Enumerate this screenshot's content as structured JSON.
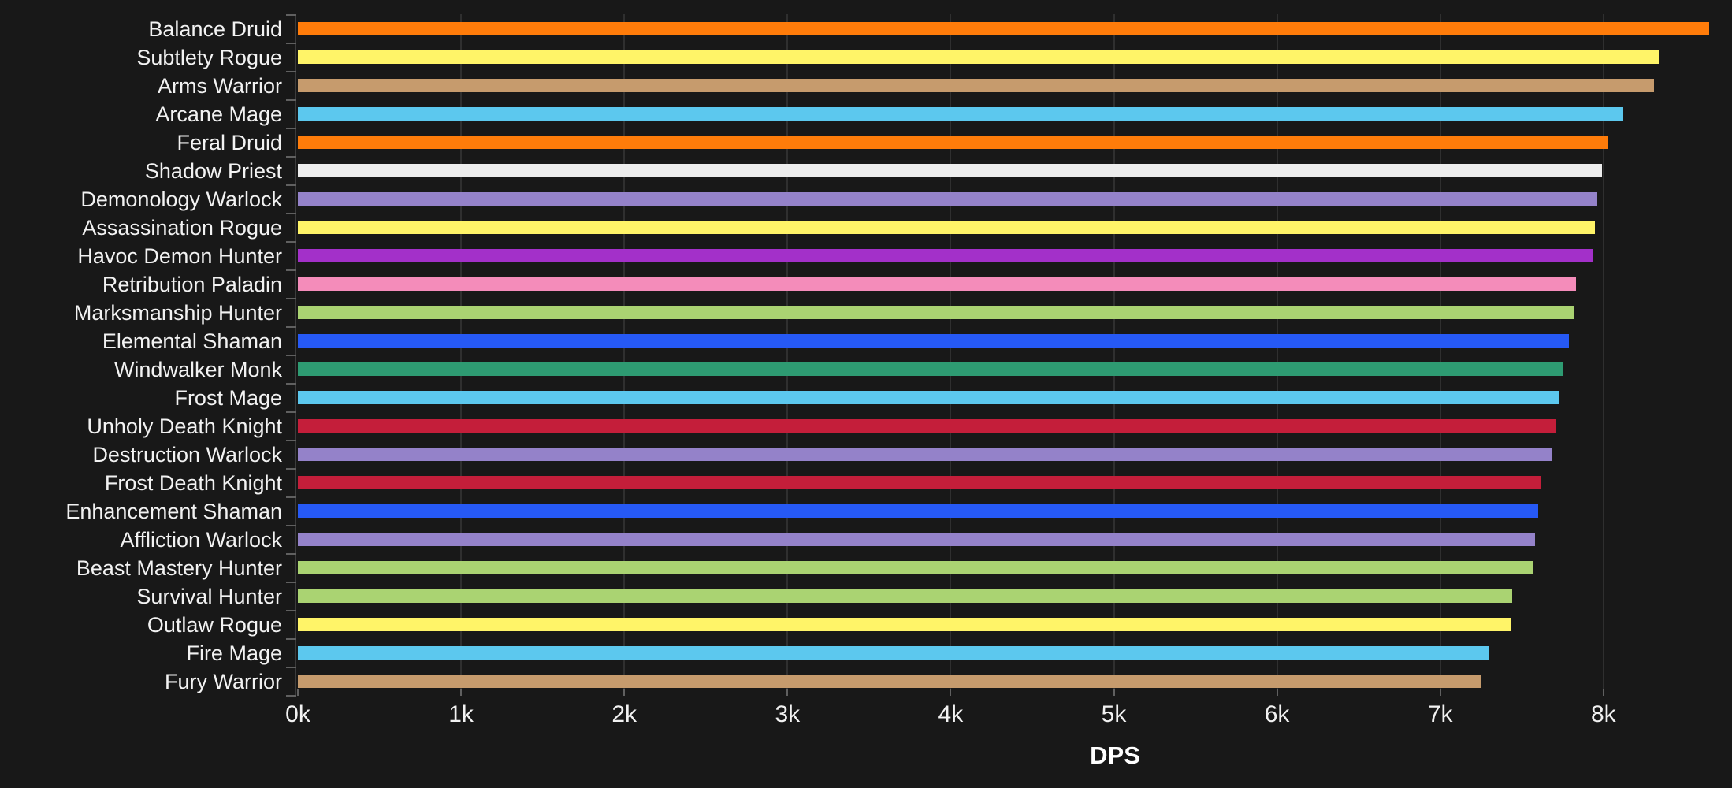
{
  "chart_data": {
    "type": "bar",
    "orientation": "horizontal",
    "title": "",
    "xlabel": "DPS",
    "ylabel": "",
    "x_tick_labels": [
      "0k",
      "1k",
      "2k",
      "3k",
      "4k",
      "5k",
      "6k",
      "7k",
      "8k"
    ],
    "x_tick_values": [
      0,
      1000,
      2000,
      3000,
      4000,
      5000,
      6000,
      7000,
      8000
    ],
    "xlim": [
      0,
      8800
    ],
    "grid": "vertical-gridlines-behind-bars",
    "legend": "none",
    "sort": "descending",
    "categories": [
      "Balance Druid",
      "Subtlety Rogue",
      "Arms Warrior",
      "Arcane Mage",
      "Feral Druid",
      "Shadow Priest",
      "Demonology Warlock",
      "Assassination Rogue",
      "Havoc Demon Hunter",
      "Retribution Paladin",
      "Marksmanship Hunter",
      "Elemental Shaman",
      "Windwalker Monk",
      "Frost Mage",
      "Unholy Death Knight",
      "Destruction Warlock",
      "Frost Death Knight",
      "Enhancement Shaman",
      "Affliction Warlock",
      "Beast Mastery Hunter",
      "Survival Hunter",
      "Outlaw Rogue",
      "Fire Mage",
      "Fury Warrior"
    ],
    "values": [
      8650,
      8340,
      8310,
      8120,
      8030,
      7990,
      7960,
      7950,
      7940,
      7830,
      7820,
      7790,
      7750,
      7730,
      7710,
      7680,
      7620,
      7600,
      7580,
      7570,
      7440,
      7430,
      7300,
      7250
    ],
    "wow_classes": [
      "druid",
      "rogue",
      "warrior",
      "mage",
      "druid",
      "priest",
      "warlock",
      "rogue",
      "demon-hunter",
      "paladin",
      "hunter",
      "shaman",
      "monk",
      "mage",
      "death-knight",
      "warlock",
      "death-knight",
      "shaman",
      "warlock",
      "hunter",
      "hunter",
      "rogue",
      "mage",
      "warrior"
    ],
    "class_colors": {
      "druid": "#FF7C0A",
      "rogue": "#FFF468",
      "warrior": "#C69B6D",
      "mage": "#5CC8EE",
      "priest": "#EDEDED",
      "warlock": "#9482C9",
      "demon-hunter": "#A330C9",
      "paladin": "#F48CBA",
      "hunter": "#AAD372",
      "shaman": "#2659F5",
      "monk": "#2E9B72",
      "death-knight": "#C41E3A"
    }
  },
  "colors": {
    "background": "#181818",
    "gridline": "#2F2F2F",
    "axis_line": "#3C3C3C",
    "tick": "#606060",
    "text": "#F2F2F2"
  }
}
